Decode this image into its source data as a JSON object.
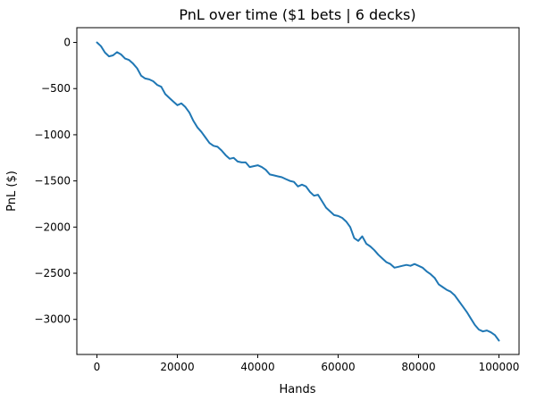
{
  "chart_data": {
    "type": "line",
    "title": "PnL over time ($1 bets | 6 decks)",
    "xlabel": "Hands",
    "ylabel": "PnL ($)",
    "xlim": [
      -5000,
      105000
    ],
    "ylim": [
      -3380,
      160
    ],
    "xticks": [
      0,
      20000,
      40000,
      60000,
      80000,
      100000
    ],
    "xtick_labels": [
      "0",
      "20000",
      "40000",
      "60000",
      "80000",
      "100000"
    ],
    "yticks": [
      0,
      -500,
      -1000,
      -1500,
      -2000,
      -2500,
      -3000
    ],
    "ytick_labels": [
      "0",
      "−500",
      "−1000",
      "−1500",
      "−2000",
      "−2500",
      "−3000"
    ],
    "grid": false,
    "series": [
      {
        "color": "#1f77b4",
        "x": [
          0,
          1000,
          2000,
          3000,
          4000,
          5000,
          6000,
          7000,
          8000,
          9000,
          10000,
          11000,
          12000,
          13000,
          14000,
          15000,
          16000,
          17000,
          18000,
          19000,
          20000,
          21000,
          22000,
          23000,
          24000,
          25000,
          26000,
          27000,
          28000,
          29000,
          30000,
          31000,
          32000,
          33000,
          34000,
          35000,
          36000,
          37000,
          38000,
          39000,
          40000,
          41000,
          42000,
          43000,
          44000,
          45000,
          46000,
          47000,
          48000,
          49000,
          50000,
          51000,
          52000,
          53000,
          54000,
          55000,
          56000,
          57000,
          58000,
          59000,
          60000,
          61000,
          62000,
          63000,
          64000,
          65000,
          66000,
          67000,
          68000,
          69000,
          70000,
          71000,
          72000,
          73000,
          74000,
          75000,
          76000,
          77000,
          78000,
          79000,
          80000,
          81000,
          82000,
          83000,
          84000,
          85000,
          86000,
          87000,
          88000,
          89000,
          90000,
          91000,
          92000,
          93000,
          94000,
          95000,
          96000,
          97000,
          98000,
          99000,
          100000
        ],
        "y": [
          0,
          -40,
          -110,
          -150,
          -140,
          -105,
          -130,
          -175,
          -190,
          -230,
          -280,
          -360,
          -390,
          -400,
          -420,
          -460,
          -480,
          -560,
          -600,
          -640,
          -680,
          -660,
          -700,
          -760,
          -850,
          -920,
          -970,
          -1030,
          -1090,
          -1120,
          -1130,
          -1170,
          -1220,
          -1260,
          -1250,
          -1290,
          -1300,
          -1300,
          -1350,
          -1340,
          -1330,
          -1350,
          -1380,
          -1430,
          -1440,
          -1450,
          -1460,
          -1480,
          -1500,
          -1510,
          -1560,
          -1540,
          -1560,
          -1620,
          -1660,
          -1650,
          -1720,
          -1790,
          -1830,
          -1870,
          -1880,
          -1900,
          -1940,
          -2000,
          -2120,
          -2150,
          -2100,
          -2180,
          -2210,
          -2250,
          -2300,
          -2340,
          -2380,
          -2400,
          -2440,
          -2430,
          -2420,
          -2410,
          -2420,
          -2400,
          -2420,
          -2440,
          -2480,
          -2510,
          -2550,
          -2620,
          -2650,
          -2680,
          -2700,
          -2740,
          -2800,
          -2860,
          -2920,
          -2990,
          -3060,
          -3110,
          -3130,
          -3120,
          -3140,
          -3170,
          -3230
        ]
      }
    ]
  }
}
